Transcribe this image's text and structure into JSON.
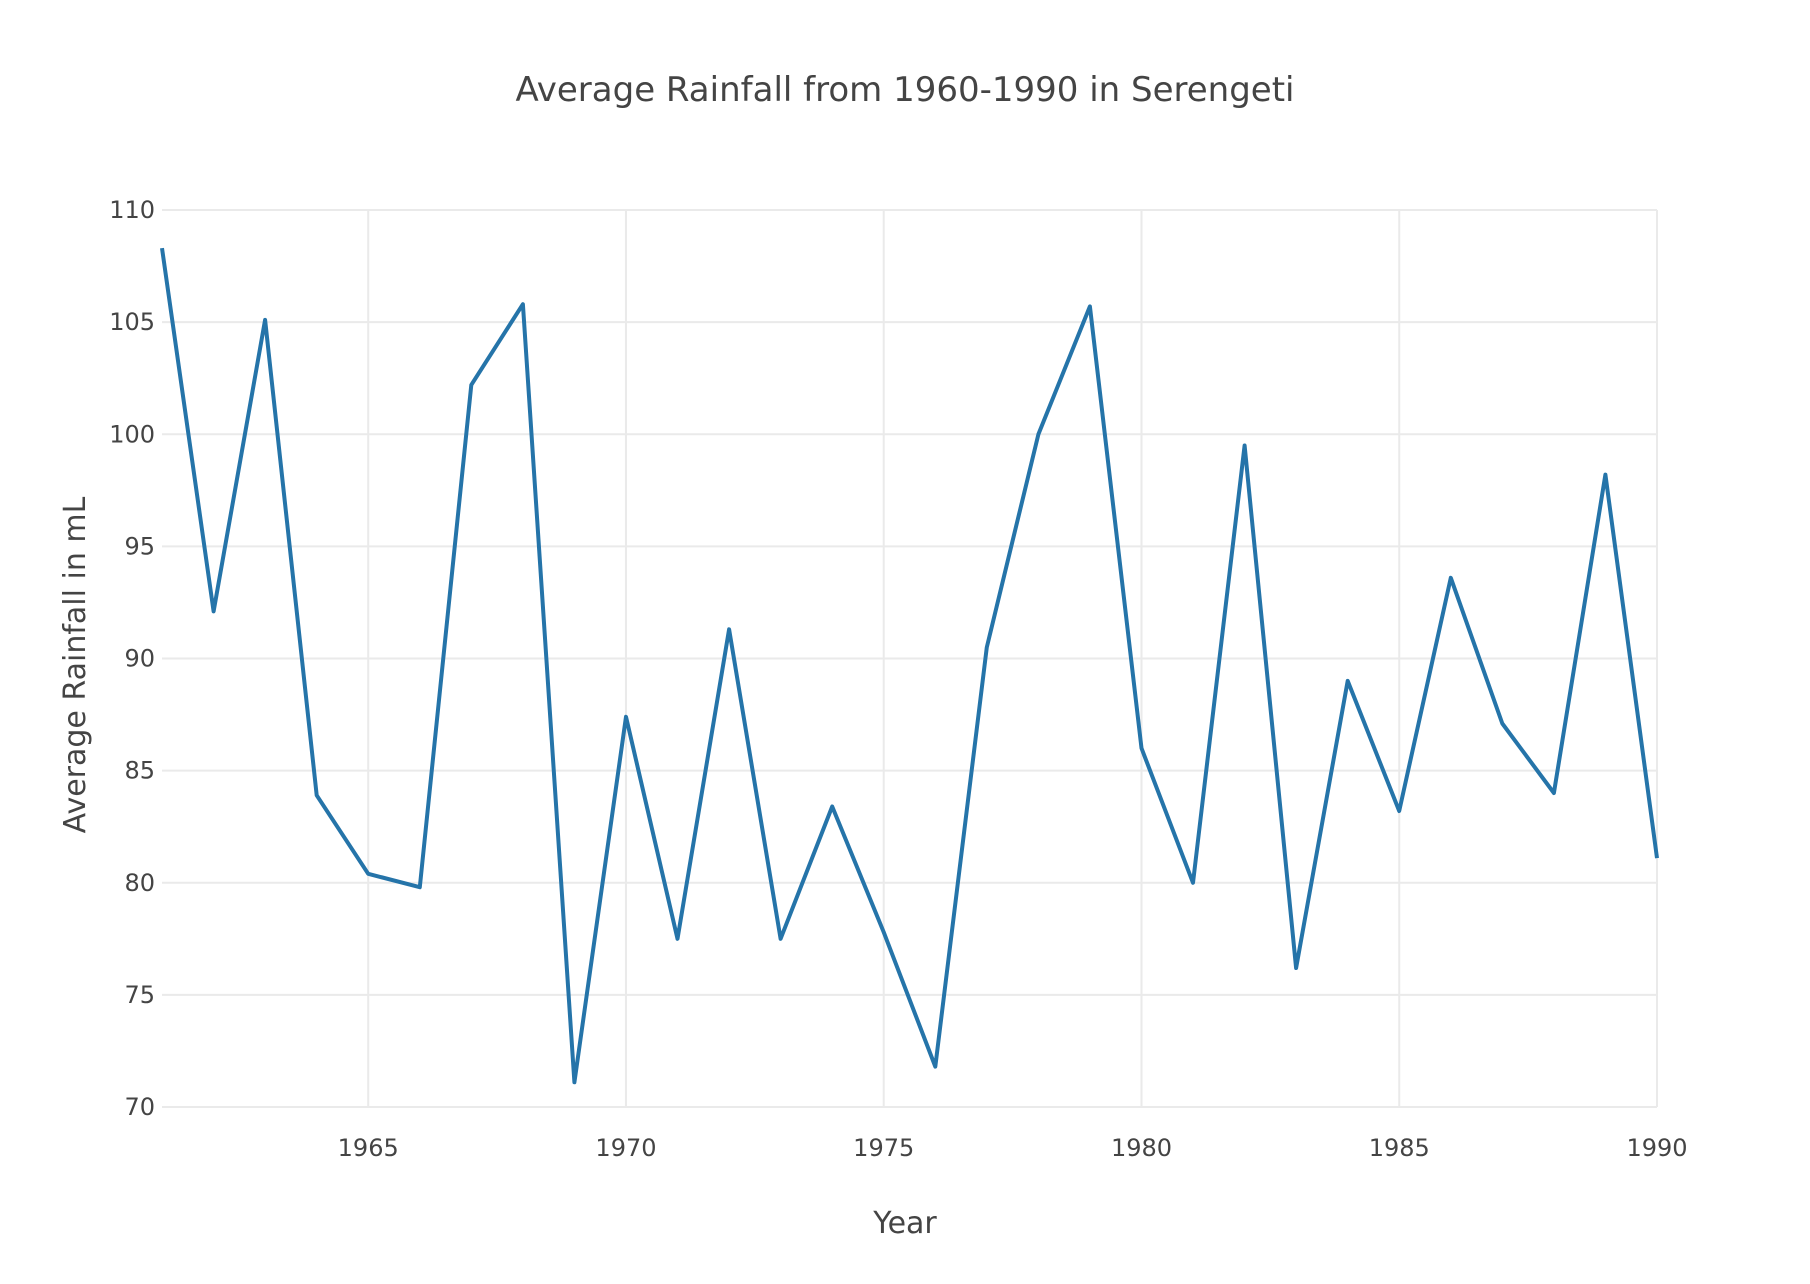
{
  "chart_data": {
    "type": "line",
    "title": "Average Rainfall from 1960-1990 in Serengeti",
    "xlabel": "Year",
    "ylabel": "Average Rainfall in mL",
    "xlim": [
      1961,
      1990
    ],
    "ylim": [
      70,
      110
    ],
    "x_ticks": [
      1965,
      1970,
      1975,
      1980,
      1985,
      1990
    ],
    "y_ticks": [
      70,
      75,
      80,
      85,
      90,
      95,
      100,
      105,
      110
    ],
    "grid": true,
    "legend": "none",
    "colors": {
      "line": "#2574a9",
      "grid": "#eaeaea",
      "text": "#444444"
    },
    "series": [
      {
        "x": [
          1961,
          1962,
          1963,
          1964,
          1965,
          1966,
          1967,
          1968,
          1969,
          1970,
          1971,
          1972,
          1973,
          1974,
          1975,
          1976,
          1977,
          1978,
          1979,
          1980,
          1981,
          1982,
          1983,
          1984,
          1985,
          1986,
          1987,
          1988,
          1989,
          1990
        ],
        "values": [
          108.3,
          92.1,
          105.1,
          83.9,
          80.4,
          79.8,
          102.2,
          105.8,
          71.1,
          87.4,
          77.5,
          91.3,
          77.5,
          83.4,
          77.8,
          71.8,
          90.5,
          100.0,
          105.7,
          86.0,
          80.0,
          99.5,
          76.2,
          89.0,
          83.2,
          93.6,
          87.1,
          84.0,
          98.2,
          81.1
        ]
      }
    ]
  }
}
